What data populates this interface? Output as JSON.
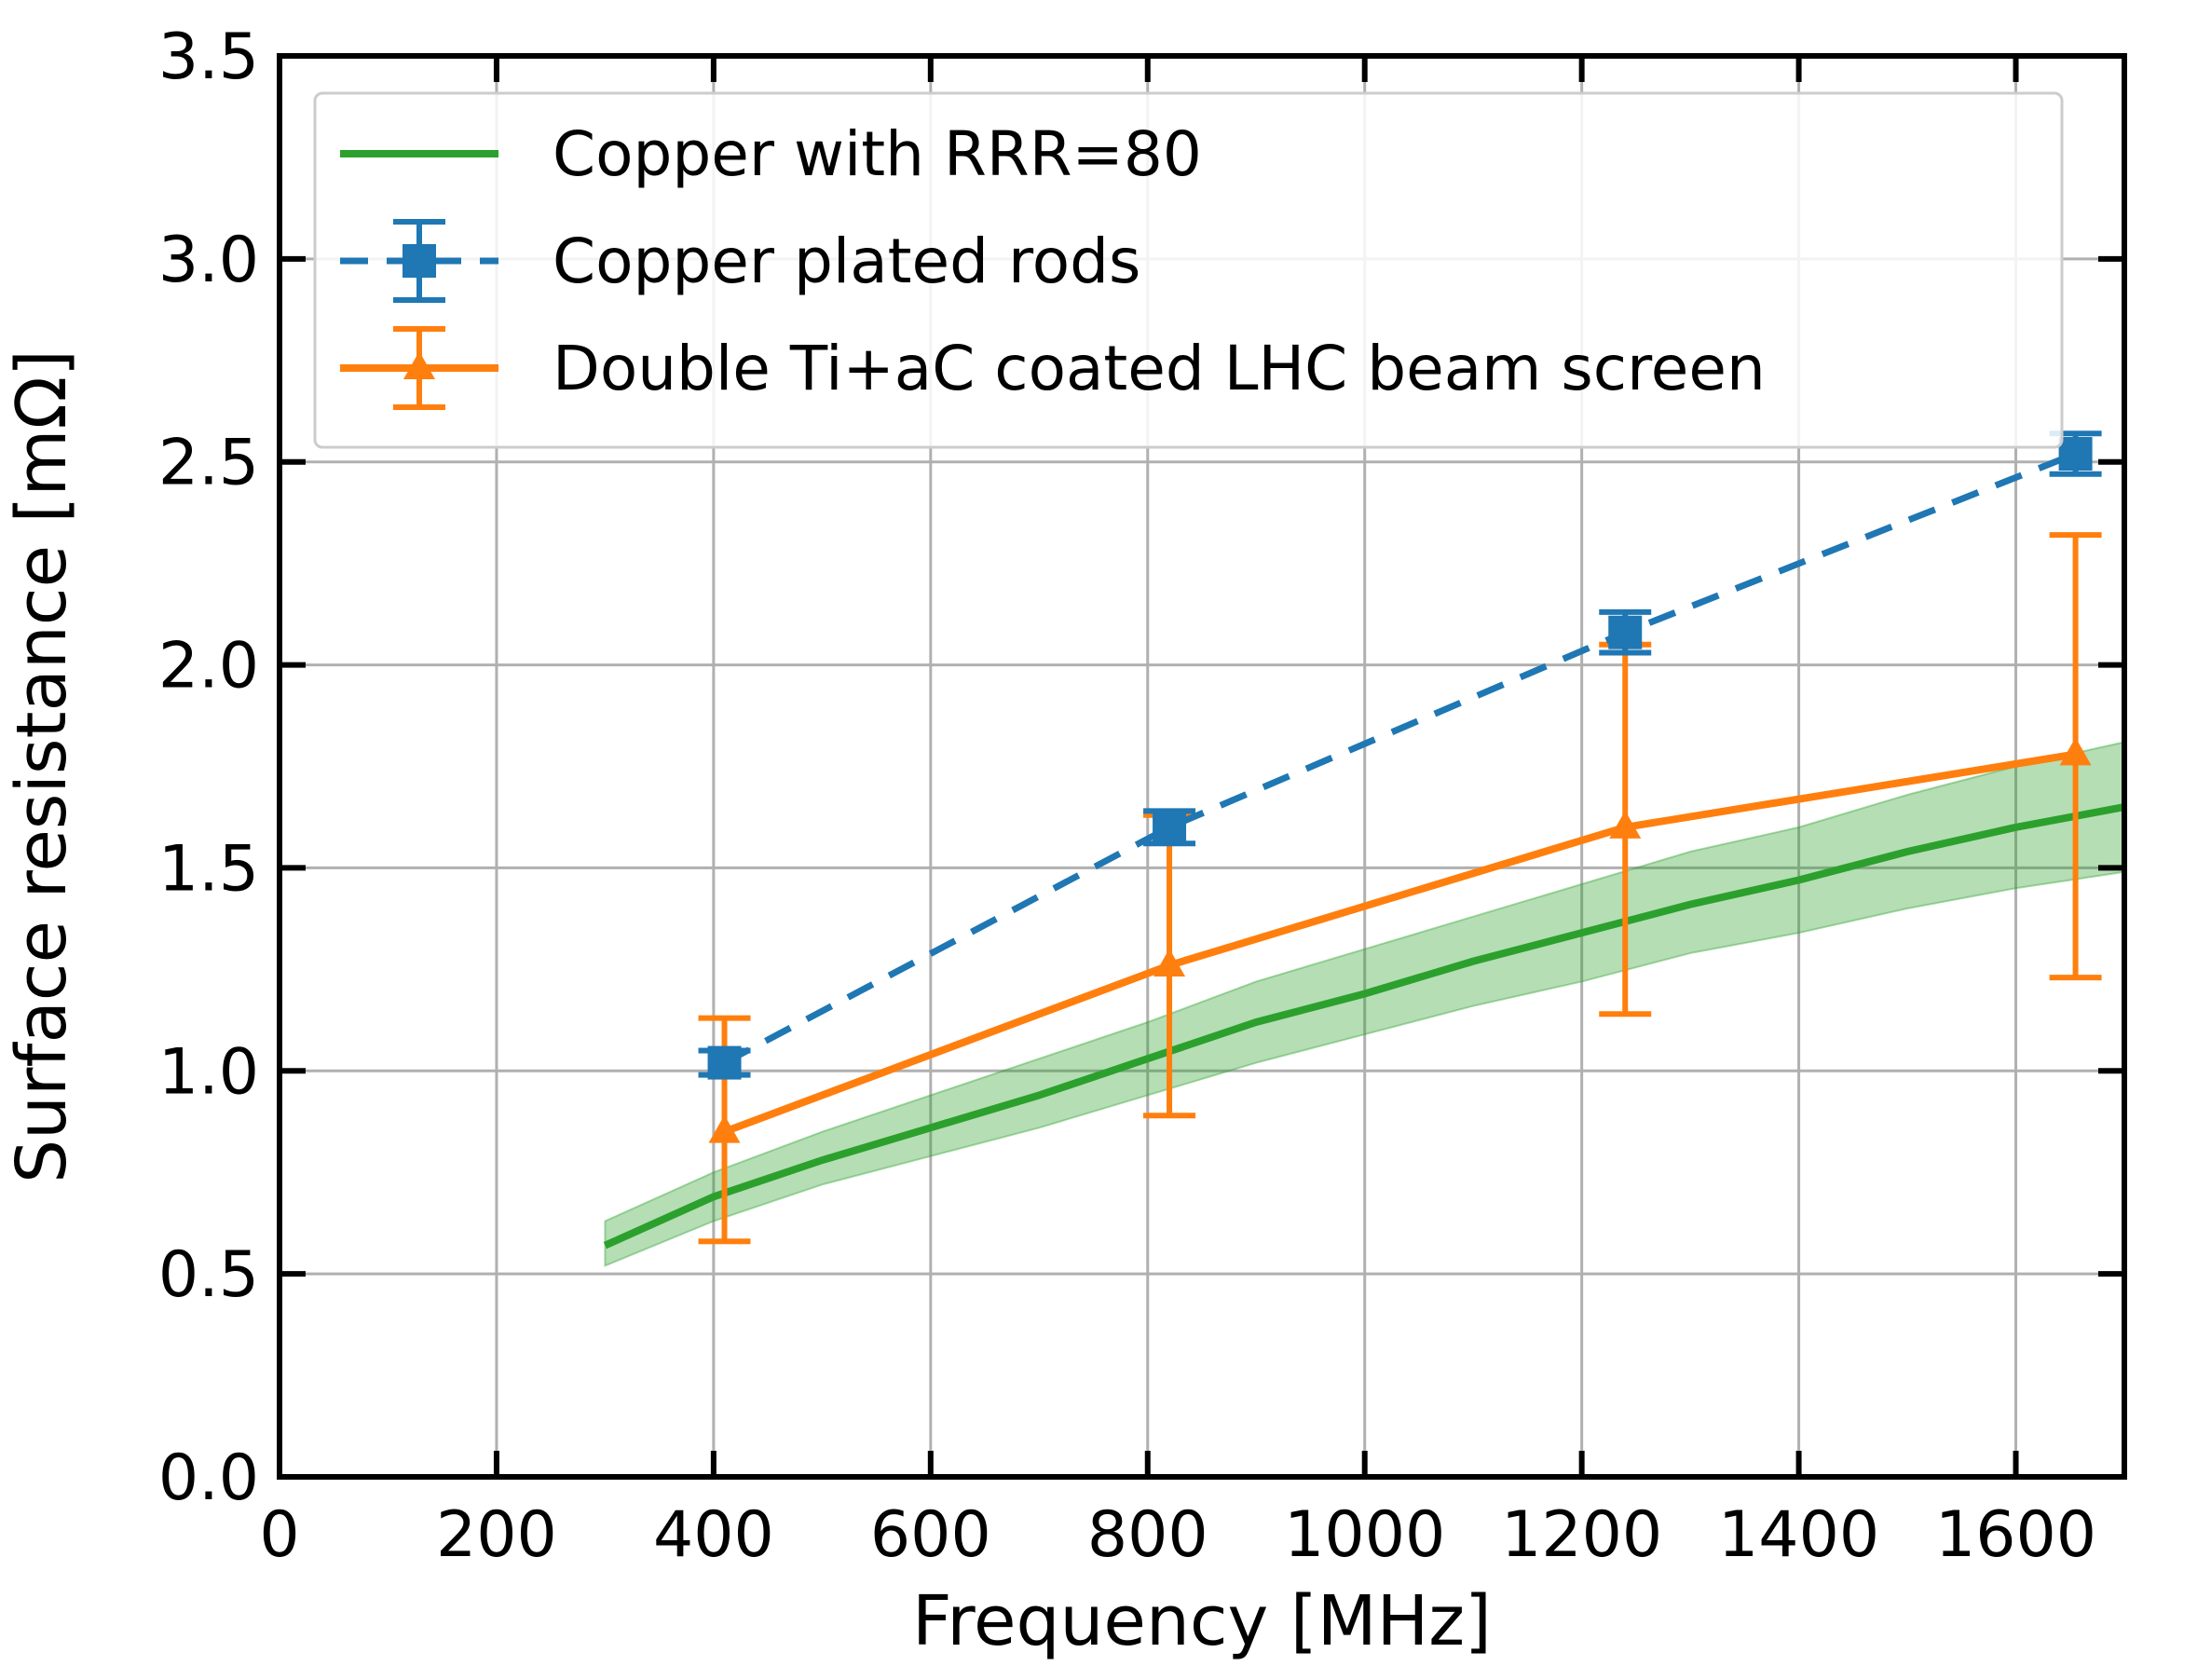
{
  "chart_data": {
    "type": "line",
    "xlabel": "Frequency [MHz]",
    "ylabel": "Surface resistance [mΩ]",
    "xlim": [
      0,
      1700
    ],
    "ylim": [
      0,
      3.5
    ],
    "xticks": [
      "0",
      "200",
      "400",
      "600",
      "800",
      "1000",
      "1200",
      "1400",
      "1600"
    ],
    "yticks": [
      "0.0",
      "0.5",
      "1.0",
      "1.5",
      "2.0",
      "2.5",
      "3.0",
      "3.5"
    ],
    "grid": true,
    "legend_position": "top-left",
    "series": [
      {
        "name": "Copper with RRR=80",
        "style": "solid line with shaded uncertainty band",
        "color": "#2ca02c",
        "band_color": "#2ca02c",
        "x": [
          300,
          400,
          500,
          600,
          700,
          800,
          900,
          1000,
          1100,
          1200,
          1300,
          1400,
          1500,
          1600,
          1700
        ],
        "y": [
          0.57,
          0.69,
          0.78,
          0.86,
          0.94,
          1.03,
          1.12,
          1.19,
          1.27,
          1.34,
          1.41,
          1.47,
          1.54,
          1.6,
          1.65
        ],
        "band_lower": [
          0.52,
          0.63,
          0.72,
          0.79,
          0.86,
          0.94,
          1.02,
          1.09,
          1.16,
          1.22,
          1.29,
          1.34,
          1.4,
          1.45,
          1.49
        ],
        "band_upper": [
          0.63,
          0.75,
          0.85,
          0.94,
          1.03,
          1.12,
          1.22,
          1.3,
          1.38,
          1.46,
          1.54,
          1.6,
          1.68,
          1.75,
          1.81
        ]
      },
      {
        "name": "Copper plated rods",
        "style": "dashed line, square markers, error bars",
        "color": "#1f77b4",
        "x": [
          410,
          820,
          1240,
          1655
        ],
        "y": [
          1.02,
          1.6,
          2.08,
          2.52
        ],
        "err": [
          0.03,
          0.04,
          0.05,
          0.05
        ]
      },
      {
        "name": "Double Ti+aC coated LHC beam screen",
        "style": "solid line, triangle markers, error bars",
        "color": "#ff7f0e",
        "x": [
          410,
          820,
          1240,
          1655
        ],
        "y": [
          0.85,
          1.26,
          1.6,
          1.78
        ],
        "err_lower": [
          0.27,
          0.37,
          0.46,
          0.55
        ],
        "err_upper": [
          0.28,
          0.37,
          0.45,
          0.54
        ]
      }
    ]
  }
}
